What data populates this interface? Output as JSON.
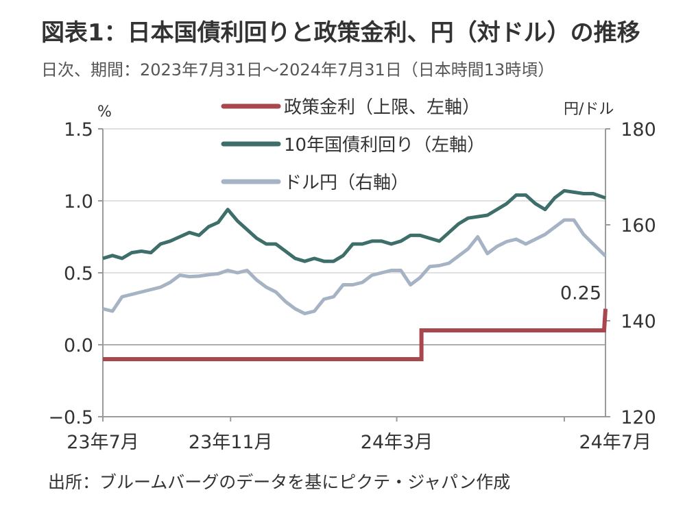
{
  "header": {
    "title": "図表1：日本国債利回りと政策金利、円（対ドル）の推移",
    "subtitle": "日次、期間：2023年7月31日～2024年7月31日（日本時間13時頃）"
  },
  "footer": {
    "source": "出所：ブルームバーグのデータを基にピクテ・ジャパン作成"
  },
  "chart_data": {
    "type": "line",
    "title": "図表1：日本国債利回りと政策金利、円（対ドル）の推移",
    "left_axis": {
      "unit_label": "%",
      "ylim": [
        -0.5,
        1.5
      ],
      "ticks": [
        "1.5",
        "1.0",
        "0.5",
        "0.0",
        "−0.5"
      ],
      "tick_values": [
        1.5,
        1.0,
        0.5,
        0.0,
        -0.5
      ]
    },
    "right_axis": {
      "unit_label": "円/ドル",
      "ylim": [
        120,
        180
      ],
      "ticks": [
        "180",
        "160",
        "140",
        "120"
      ],
      "tick_values": [
        180,
        160,
        140,
        120
      ]
    },
    "x_axis": {
      "range": [
        "2023-07-31",
        "2024-07-31"
      ],
      "tick_labels": [
        "23年7月",
        "23年11月",
        "24年3月",
        "24年7月"
      ],
      "tick_dates": [
        "2023-07-31",
        "2023-11-01",
        "2024-03-01",
        "2024-07-01"
      ]
    },
    "grid": "horizontal",
    "legend_position": "top-center",
    "annotations": [
      {
        "text": "0.25",
        "date": "2024-07-31",
        "value": 0.25,
        "axis": "left"
      }
    ],
    "series": [
      {
        "name": "政策金利（上限、左軸）",
        "axis": "left",
        "color": "#a8474e",
        "step": true,
        "points": [
          [
            "2023-07-31",
            -0.1
          ],
          [
            "2024-03-19",
            -0.1
          ],
          [
            "2024-03-19",
            0.1
          ],
          [
            "2024-07-30",
            0.1
          ],
          [
            "2024-07-31",
            0.25
          ]
        ]
      },
      {
        "name": "10年国債利回り（左軸）",
        "axis": "left",
        "color": "#3e6e6a",
        "points": [
          [
            "2023-07-31",
            0.6
          ],
          [
            "2023-08-07",
            0.62
          ],
          [
            "2023-08-14",
            0.6
          ],
          [
            "2023-08-21",
            0.64
          ],
          [
            "2023-08-28",
            0.65
          ],
          [
            "2023-09-04",
            0.64
          ],
          [
            "2023-09-11",
            0.7
          ],
          [
            "2023-09-18",
            0.72
          ],
          [
            "2023-09-25",
            0.75
          ],
          [
            "2023-10-02",
            0.78
          ],
          [
            "2023-10-09",
            0.76
          ],
          [
            "2023-10-16",
            0.82
          ],
          [
            "2023-10-23",
            0.85
          ],
          [
            "2023-10-30",
            0.94
          ],
          [
            "2023-11-06",
            0.86
          ],
          [
            "2023-11-13",
            0.8
          ],
          [
            "2023-11-20",
            0.74
          ],
          [
            "2023-11-27",
            0.7
          ],
          [
            "2023-12-04",
            0.7
          ],
          [
            "2023-12-11",
            0.65
          ],
          [
            "2023-12-18",
            0.6
          ],
          [
            "2023-12-25",
            0.58
          ],
          [
            "2024-01-01",
            0.6
          ],
          [
            "2024-01-08",
            0.58
          ],
          [
            "2024-01-15",
            0.58
          ],
          [
            "2024-01-22",
            0.62
          ],
          [
            "2024-01-29",
            0.7
          ],
          [
            "2024-02-05",
            0.7
          ],
          [
            "2024-02-12",
            0.72
          ],
          [
            "2024-02-19",
            0.72
          ],
          [
            "2024-02-26",
            0.7
          ],
          [
            "2024-03-04",
            0.72
          ],
          [
            "2024-03-11",
            0.76
          ],
          [
            "2024-03-18",
            0.76
          ],
          [
            "2024-03-25",
            0.74
          ],
          [
            "2024-04-01",
            0.72
          ],
          [
            "2024-04-08",
            0.78
          ],
          [
            "2024-04-15",
            0.84
          ],
          [
            "2024-04-22",
            0.88
          ],
          [
            "2024-04-29",
            0.89
          ],
          [
            "2024-05-06",
            0.9
          ],
          [
            "2024-05-13",
            0.94
          ],
          [
            "2024-05-20",
            0.98
          ],
          [
            "2024-05-27",
            1.04
          ],
          [
            "2024-06-03",
            1.04
          ],
          [
            "2024-06-10",
            0.98
          ],
          [
            "2024-06-17",
            0.94
          ],
          [
            "2024-06-24",
            1.02
          ],
          [
            "2024-07-01",
            1.07
          ],
          [
            "2024-07-08",
            1.06
          ],
          [
            "2024-07-15",
            1.05
          ],
          [
            "2024-07-22",
            1.05
          ],
          [
            "2024-07-31",
            1.02
          ]
        ]
      },
      {
        "name": "ドル円（右軸）",
        "axis": "right",
        "color": "#a6b3c5",
        "points": [
          [
            "2023-07-31",
            142.5
          ],
          [
            "2023-08-07",
            142.0
          ],
          [
            "2023-08-14",
            145.0
          ],
          [
            "2023-08-21",
            145.5
          ],
          [
            "2023-08-28",
            146.0
          ],
          [
            "2023-09-04",
            146.5
          ],
          [
            "2023-09-11",
            147.0
          ],
          [
            "2023-09-18",
            148.0
          ],
          [
            "2023-09-25",
            149.5
          ],
          [
            "2023-10-02",
            149.2
          ],
          [
            "2023-10-09",
            149.3
          ],
          [
            "2023-10-16",
            149.6
          ],
          [
            "2023-10-23",
            149.8
          ],
          [
            "2023-10-30",
            150.5
          ],
          [
            "2023-11-06",
            150.0
          ],
          [
            "2023-11-13",
            150.5
          ],
          [
            "2023-11-20",
            148.5
          ],
          [
            "2023-11-27",
            147.0
          ],
          [
            "2023-12-04",
            146.0
          ],
          [
            "2023-12-11",
            144.0
          ],
          [
            "2023-12-18",
            142.5
          ],
          [
            "2023-12-25",
            141.5
          ],
          [
            "2024-01-01",
            142.0
          ],
          [
            "2024-01-08",
            144.5
          ],
          [
            "2024-01-15",
            145.0
          ],
          [
            "2024-01-22",
            147.5
          ],
          [
            "2024-01-29",
            147.5
          ],
          [
            "2024-02-05",
            148.0
          ],
          [
            "2024-02-12",
            149.5
          ],
          [
            "2024-02-19",
            150.0
          ],
          [
            "2024-02-26",
            150.5
          ],
          [
            "2024-03-04",
            150.5
          ],
          [
            "2024-03-11",
            147.5
          ],
          [
            "2024-03-18",
            149.0
          ],
          [
            "2024-03-25",
            151.3
          ],
          [
            "2024-04-01",
            151.5
          ],
          [
            "2024-04-08",
            152.0
          ],
          [
            "2024-04-15",
            153.5
          ],
          [
            "2024-04-22",
            155.0
          ],
          [
            "2024-04-29",
            157.5
          ],
          [
            "2024-05-06",
            154.0
          ],
          [
            "2024-05-13",
            155.5
          ],
          [
            "2024-05-20",
            156.5
          ],
          [
            "2024-05-27",
            157.0
          ],
          [
            "2024-06-03",
            156.0
          ],
          [
            "2024-06-10",
            157.0
          ],
          [
            "2024-06-17",
            158.0
          ],
          [
            "2024-06-24",
            159.5
          ],
          [
            "2024-07-01",
            161.0
          ],
          [
            "2024-07-08",
            161.0
          ],
          [
            "2024-07-15",
            158.0
          ],
          [
            "2024-07-22",
            156.0
          ],
          [
            "2024-07-31",
            153.5
          ]
        ]
      }
    ]
  }
}
